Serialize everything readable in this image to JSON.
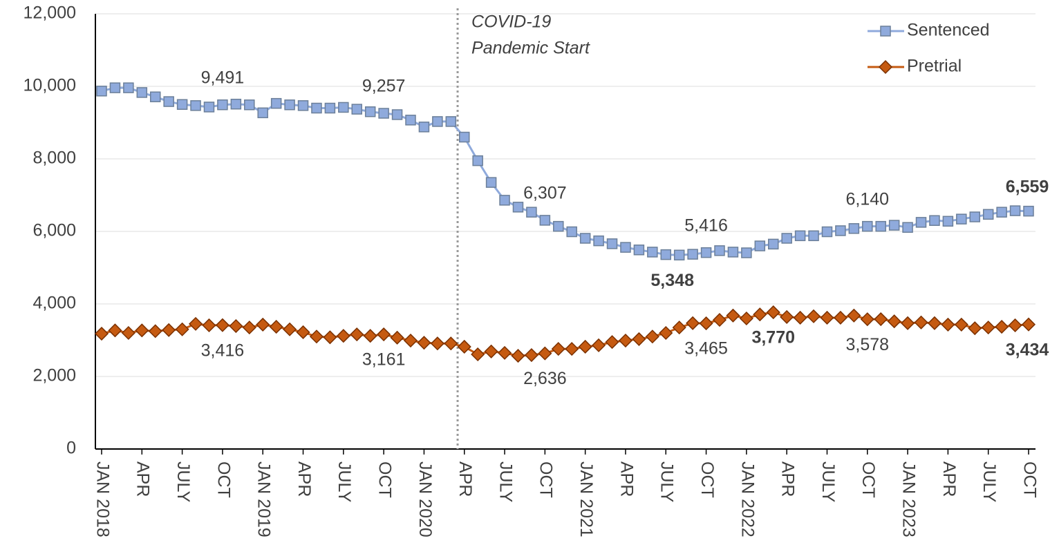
{
  "chart_data": {
    "type": "line",
    "categories": [
      "JAN 2018",
      null,
      null,
      "APR",
      null,
      null,
      "JULY",
      null,
      null,
      "OCT",
      null,
      null,
      "JAN 2019",
      null,
      null,
      "APR",
      null,
      null,
      "JULY",
      null,
      null,
      "OCT",
      null,
      null,
      "JAN 2020",
      null,
      null,
      "APR",
      null,
      null,
      "JULY",
      null,
      null,
      "OCT",
      null,
      null,
      "JAN 2021",
      null,
      null,
      "APR",
      null,
      null,
      "JULY",
      null,
      null,
      "OCT",
      null,
      null,
      "JAN 2022",
      null,
      null,
      "APR",
      null,
      null,
      "JULY",
      null,
      null,
      "OCT",
      null,
      null,
      "JAN 2023",
      null,
      null,
      "APR",
      null,
      null,
      "JULY",
      null,
      null,
      "OCT"
    ],
    "series": [
      {
        "name": "Sentenced",
        "color": "#8faadc",
        "values": [
          9870,
          9960,
          9960,
          9830,
          9710,
          9580,
          9500,
          9470,
          9430,
          9491,
          9510,
          9490,
          9270,
          9530,
          9490,
          9470,
          9400,
          9400,
          9420,
          9370,
          9300,
          9257,
          9220,
          9070,
          8880,
          9030,
          9030,
          8600,
          7950,
          7350,
          6860,
          6670,
          6530,
          6307,
          6140,
          5990,
          5810,
          5740,
          5660,
          5560,
          5490,
          5430,
          5360,
          5348,
          5370,
          5416,
          5470,
          5430,
          5410,
          5600,
          5650,
          5810,
          5880,
          5880,
          5990,
          6020,
          6080,
          6140,
          6140,
          6170,
          6110,
          6250,
          6300,
          6280,
          6340,
          6400,
          6470,
          6530,
          6570,
          6559
        ],
        "value_labels": [
          null,
          null,
          null,
          null,
          null,
          null,
          null,
          null,
          null,
          "9,491",
          null,
          null,
          null,
          null,
          null,
          null,
          null,
          null,
          null,
          null,
          null,
          "9,257",
          null,
          null,
          null,
          null,
          null,
          null,
          null,
          null,
          null,
          null,
          null,
          "6,307",
          null,
          null,
          null,
          null,
          null,
          null,
          null,
          null,
          null,
          "5,348",
          null,
          "5,416",
          null,
          null,
          null,
          null,
          null,
          null,
          null,
          null,
          null,
          null,
          null,
          "6,140",
          null,
          null,
          null,
          null,
          null,
          null,
          null,
          null,
          null,
          null,
          null,
          "6,559"
        ]
      },
      {
        "name": "Pretrial",
        "color": "#c55a11",
        "values": [
          3180,
          3270,
          3200,
          3270,
          3250,
          3280,
          3300,
          3450,
          3410,
          3416,
          3390,
          3350,
          3430,
          3370,
          3300,
          3220,
          3100,
          3080,
          3120,
          3160,
          3120,
          3161,
          3070,
          2990,
          2930,
          2910,
          2910,
          2820,
          2610,
          2690,
          2650,
          2570,
          2590,
          2636,
          2760,
          2760,
          2820,
          2860,
          2950,
          2990,
          3030,
          3100,
          3200,
          3350,
          3470,
          3465,
          3560,
          3680,
          3600,
          3710,
          3770,
          3640,
          3620,
          3660,
          3620,
          3620,
          3680,
          3578,
          3580,
          3520,
          3470,
          3490,
          3470,
          3430,
          3430,
          3330,
          3350,
          3370,
          3410,
          3434
        ],
        "value_labels": [
          null,
          null,
          null,
          null,
          null,
          null,
          null,
          null,
          null,
          "3,416",
          null,
          null,
          null,
          null,
          null,
          null,
          null,
          null,
          null,
          null,
          null,
          "3,161",
          null,
          null,
          null,
          null,
          null,
          null,
          null,
          null,
          null,
          null,
          null,
          "2,636",
          null,
          null,
          null,
          null,
          null,
          null,
          null,
          null,
          null,
          null,
          null,
          "3,465",
          null,
          null,
          null,
          null,
          "3,770",
          null,
          null,
          null,
          null,
          null,
          null,
          "3,578",
          null,
          null,
          null,
          null,
          null,
          null,
          null,
          null,
          null,
          null,
          null,
          "3,434"
        ]
      }
    ],
    "annotation": [
      "COVID-19",
      "Pandemic Start"
    ],
    "ylim": [
      0,
      12000
    ],
    "yticks": [
      0,
      {
        "value": 2000,
        "label": "2,000"
      },
      {
        "value": 4000,
        "label": "4,000"
      },
      {
        "value": 6000,
        "label": "6,000"
      },
      {
        "value": 8000,
        "label": "8,000"
      },
      {
        "value": 10000,
        "label": "10,000"
      },
      {
        "value": 12000,
        "label": "12,000"
      }
    ],
    "grid": true,
    "legend": "top-right"
  }
}
